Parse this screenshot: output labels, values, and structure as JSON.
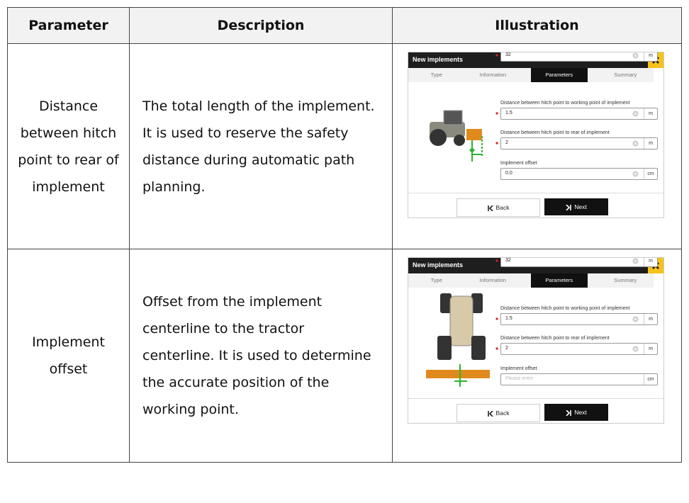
{
  "table": {
    "headers": [
      "Parameter",
      "Description",
      "Illustration"
    ],
    "rows": [
      {
        "parameter": "Distance between hitch point to rear of implement",
        "description": "The total length of the implement. It is used to reserve the safety distance during automatic path planning.",
        "illustration": {
          "title": "New implements",
          "tabs": [
            "Type",
            "Information",
            "Parameters",
            "Summary"
          ],
          "fields": [
            {
              "value": "32",
              "unit": "m"
            },
            {
              "label": "Distance between hitch point to working point of implement",
              "value": "1.5",
              "unit": "m"
            },
            {
              "label": "Distance between hitch point to rear of implement",
              "value": "2",
              "unit": "m"
            },
            {
              "label": "Implement offset",
              "value": "0.0",
              "unit": "cm"
            }
          ],
          "buttons": [
            "Back",
            "Next"
          ]
        }
      },
      {
        "parameter": "Implement offset",
        "description": "Offset from the implement centerline to the tractor centerline. It is used to determine the accurate position of the working point.",
        "illustration": {
          "title": "New implements",
          "tabs": [
            "Type",
            "Information",
            "Parameters",
            "Summary"
          ],
          "fields": [
            {
              "value": "32",
              "unit": "m"
            },
            {
              "label": "Distance between hitch point to working point of implement",
              "value": "1.5",
              "unit": "m"
            },
            {
              "label": "Distance between hitch point to rear of implement",
              "value": "2",
              "unit": "m"
            },
            {
              "label": "Implement offset",
              "placeholder": "Please enter",
              "unit": "cm"
            }
          ],
          "buttons": [
            "Back",
            "Next"
          ]
        }
      }
    ]
  }
}
